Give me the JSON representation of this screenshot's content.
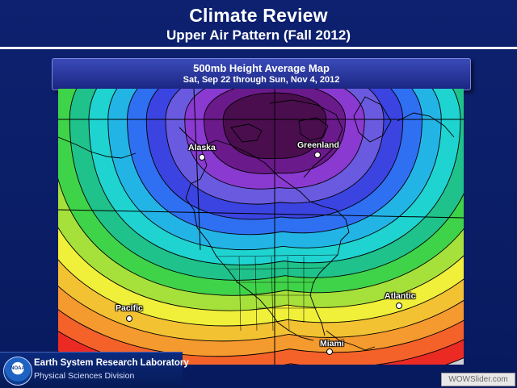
{
  "slide": {
    "title": "Climate Review",
    "subtitle": "Upper Air Pattern (Fall 2012)"
  },
  "map": {
    "header_line1": "500mb Height Average Map",
    "header_line2": "Sat, Sep 22 through Sun, Nov 4, 2012",
    "labels": {
      "alaska": "Alaska",
      "greenland": "Greenland",
      "pacific": "Pacific",
      "atlantic": "Atlantic",
      "miami": "Miami"
    },
    "color_bands": [
      "#4a0e4e",
      "#6a1a8a",
      "#8a3ad0",
      "#6a5adf",
      "#3b44e0",
      "#2f6ff2",
      "#23b4e6",
      "#1fd3d0",
      "#1fc28a",
      "#3fd34a",
      "#a6e03a",
      "#f0ef3a",
      "#f3c233",
      "#f59a2e",
      "#f4622a",
      "#ec2a24"
    ]
  },
  "footer": {
    "lab_name": "Earth System Research Laboratory",
    "division": "Physical Sciences Division",
    "emblem_text": "NOAA",
    "watermark": "WOWSlider.com"
  }
}
